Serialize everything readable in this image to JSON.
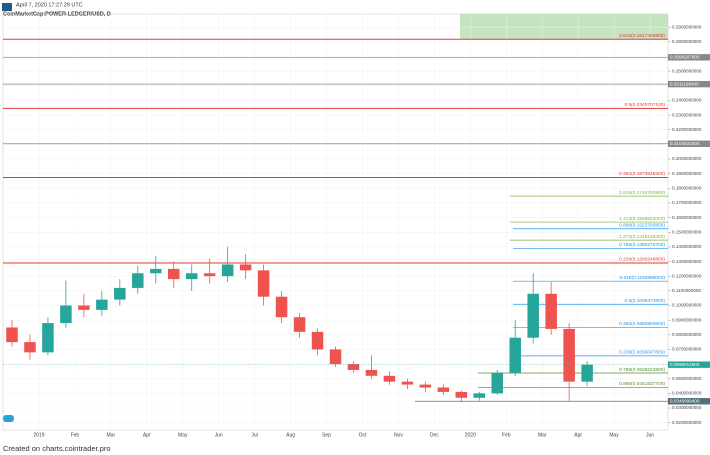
{
  "header": {
    "timestamp": "April 7, 2020 17:27:29 UTC",
    "symbol": "CoinMarketCap:POWER-LEDGER/USD, D"
  },
  "footer": "Created on charts.cointrader.pro",
  "chart_data": {
    "type": "candlestick",
    "categories": [
      null,
      null,
      "2019",
      null,
      "Feb",
      null,
      "Mar",
      null,
      "Apr",
      null,
      "May",
      null,
      "Jun",
      null,
      "Jul",
      null,
      "Aug",
      null,
      "Sep",
      null,
      "Oct",
      null,
      "Nov",
      null,
      "Dec",
      null,
      "2020",
      null,
      "Feb",
      null,
      "Mar",
      null,
      "Apr",
      null,
      "May",
      null,
      "Jun"
    ],
    "open": [
      0.085,
      0.075,
      0.068,
      0.088,
      0.1,
      0.097,
      0.104,
      0.112,
      0.122,
      0.125,
      0.118,
      0.122,
      0.12,
      0.128,
      0.124,
      0.106,
      0.092,
      0.082,
      0.07,
      0.06,
      0.056,
      0.052,
      0.048,
      0.046,
      0.044,
      0.041,
      0.037,
      0.04,
      0.054,
      0.078,
      0.108,
      0.084,
      0.048,
      null,
      null,
      null,
      null
    ],
    "high": [
      0.09,
      0.08,
      0.092,
      0.117,
      0.108,
      0.11,
      0.118,
      0.127,
      0.134,
      0.13,
      0.128,
      0.132,
      0.14,
      0.135,
      0.128,
      0.11,
      0.095,
      0.084,
      0.072,
      0.062,
      0.066,
      0.055,
      0.05,
      0.048,
      0.046,
      0.042,
      0.041,
      0.056,
      0.09,
      0.122,
      0.116,
      0.088,
      0.062,
      null,
      null,
      null,
      null
    ],
    "low": [
      0.072,
      0.063,
      0.066,
      0.085,
      0.092,
      0.093,
      0.1,
      0.108,
      0.115,
      0.112,
      0.11,
      0.115,
      0.116,
      0.118,
      0.1,
      0.088,
      0.078,
      0.066,
      0.058,
      0.054,
      0.05,
      0.046,
      0.043,
      0.041,
      0.039,
      0.034,
      0.035,
      0.039,
      0.052,
      0.074,
      0.08,
      0.035,
      0.045,
      null,
      null,
      null,
      null
    ],
    "close": [
      0.075,
      0.068,
      0.088,
      0.1,
      0.097,
      0.104,
      0.112,
      0.122,
      0.125,
      0.118,
      0.122,
      0.12,
      0.128,
      0.124,
      0.106,
      0.092,
      0.082,
      0.07,
      0.06,
      0.056,
      0.052,
      0.048,
      0.046,
      0.044,
      0.041,
      0.037,
      0.04,
      0.054,
      0.078,
      0.108,
      0.084,
      0.048,
      0.0596,
      null,
      null,
      null,
      null
    ],
    "up_color": "#26a69a",
    "down_color": "#ef5350",
    "ylim": [
      0.015,
      0.299
    ],
    "yticks": [
      {
        "value": 0.29,
        "label": "0.2900000000"
      },
      {
        "value": 0.28,
        "label": "0.2800000000"
      },
      {
        "value": 0.27,
        "label": "0.2700000000"
      },
      {
        "value": 0.26,
        "label": "0.2600000000"
      },
      {
        "value": 0.25,
        "label": "0.2500000000"
      },
      {
        "value": 0.24,
        "label": "0.2400000000"
      },
      {
        "value": 0.23,
        "label": "0.2300000000"
      },
      {
        "value": 0.22,
        "label": "0.2200000000"
      },
      {
        "value": 0.21,
        "label": "0.2100000000"
      },
      {
        "value": 0.2,
        "label": "0.2000000000"
      },
      {
        "value": 0.19,
        "label": "0.1900000000"
      },
      {
        "value": 0.18,
        "label": "0.1800000000"
      },
      {
        "value": 0.17,
        "label": "0.1700000000"
      },
      {
        "value": 0.16,
        "label": "0.1600000000"
      },
      {
        "value": 0.15,
        "label": "0.1500000000"
      },
      {
        "value": 0.14,
        "label": "0.1400000000"
      },
      {
        "value": 0.13,
        "label": "0.1300000000"
      },
      {
        "value": 0.12,
        "label": "0.1200000000"
      },
      {
        "value": 0.11,
        "label": "0.1100000000"
      },
      {
        "value": 0.1,
        "label": "0.1000000000"
      },
      {
        "value": 0.09,
        "label": "0.0900000000"
      },
      {
        "value": 0.08,
        "label": "0.0800000000"
      },
      {
        "value": 0.07,
        "label": "0.0700000000"
      },
      {
        "value": 0.06,
        "label": "0.0600000000"
      },
      {
        "value": 0.05,
        "label": "0.0500000000"
      },
      {
        "value": 0.04,
        "label": "0.0400000000"
      },
      {
        "value": 0.03,
        "label": "0.0300000000"
      },
      {
        "value": 0.02,
        "label": "0.0200000000"
      }
    ],
    "grid": true,
    "levels": {
      "red": {
        "color": "#e53935",
        "items": [
          {
            "value": 0.28174658,
            "label": "0.618(0.2817465800)"
          },
          {
            "value": 0.23457071,
            "label": "0.5(0.2345707100)"
          },
          {
            "value": 0.18739483,
            "label": "0.382(0.1873948300)"
          },
          {
            "value": 0.12902468,
            "label": "0.236(0.1290246800)"
          }
        ]
      },
      "gray": {
        "color": "#888888",
        "items": [
          {
            "value": 0.26942978,
            "label": "0.2694297800"
          },
          {
            "value": 0.25111964,
            "label": "0.2511196400"
          },
          {
            "value": 0.21040233,
            "label": "0.2104023300"
          }
        ]
      },
      "green_upper": {
        "color": "#7cb342",
        "items": [
          {
            "value": 0.17467628,
            "label": "1.618(0.1746762800)"
          },
          {
            "value": 0.1569522,
            "label": "1.414(0.1569522000)"
          },
          {
            "value": 0.14461484,
            "label": "1.272(0.1446148400)"
          }
        ]
      },
      "blue": {
        "color": "#2196f3",
        "items": [
          {
            "value": 0.15237658,
            "label": "0.886(0.1523765800)"
          },
          {
            "value": 0.13902707,
            "label": "0.786(0.1390270700)"
          },
          {
            "value": 0.1165999,
            "label": "0.618(0.1165999000)"
          },
          {
            "value": 0.10084748,
            "label": "0.5(0.1008474800)"
          },
          {
            "value": 0.08509506,
            "label": "0.382(0.0850950600)"
          },
          {
            "value": 0.06560478,
            "label": "0.236(0.0656047800)"
          }
        ]
      },
      "green_lower": {
        "color": "#558b2f",
        "items": [
          {
            "value": 0.05392228,
            "label": "0.786(0.0539222800)"
          },
          {
            "value": 0.04415377,
            "label": "0.886(0.0441537700)"
          }
        ]
      },
      "base": {
        "color": "#546e7a",
        "items": [
          {
            "value": 0.03460994,
            "label": "0.0346099400"
          }
        ]
      }
    },
    "last_price": {
      "value": 0.05960149,
      "label": "0.0596014900",
      "color": "#26a69a"
    }
  }
}
